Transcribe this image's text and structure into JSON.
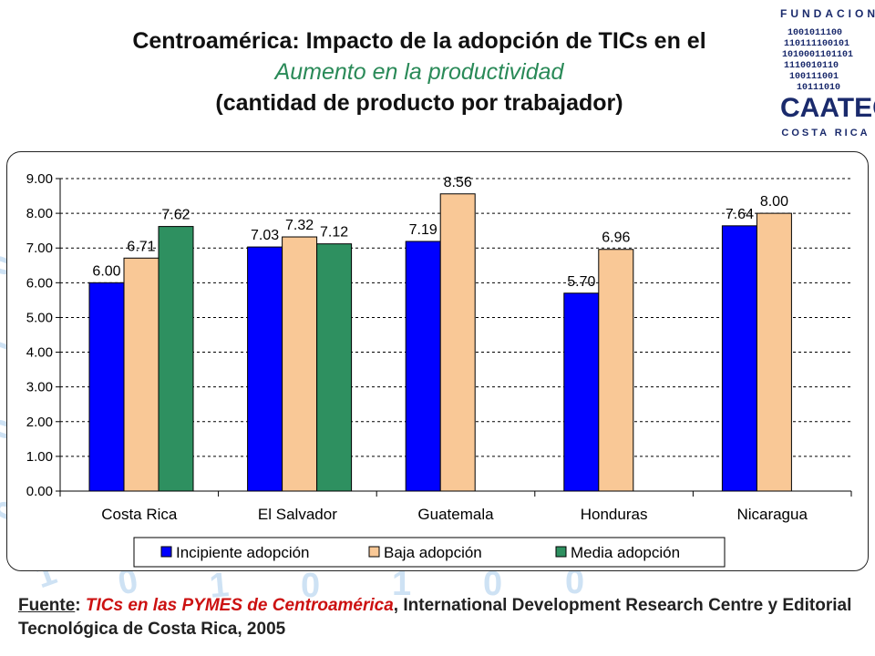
{
  "title": {
    "line1": "Centroamérica: Impacto de la adopción de TICs en el",
    "line2": "Aumento en la productividad",
    "line3": "(cantidad de producto por trabajador)"
  },
  "logo": {
    "top_text": "FUNDACION",
    "name": "CAATEC",
    "bottom_text": "COSTA RICA"
  },
  "footer": {
    "label": "Fuente",
    "colon": ": ",
    "source_title": "TICs en las PYMES de Centroamérica",
    "source_rest": ", International Development Research Centre y Editorial Tecnológica de Costa Rica, 2005"
  },
  "colors": {
    "incipiente": "#0000ff",
    "baja": "#f9c896",
    "media": "#2e9060"
  },
  "chart_data": {
    "type": "bar",
    "title": "",
    "xlabel": "",
    "ylabel": "",
    "ylim": [
      0,
      9
    ],
    "yticks": [
      "0.00",
      "1.00",
      "2.00",
      "3.00",
      "4.00",
      "5.00",
      "6.00",
      "7.00",
      "8.00",
      "9.00"
    ],
    "categories": [
      "Costa Rica",
      "El Salvador",
      "Guatemala",
      "Honduras",
      "Nicaragua"
    ],
    "series": [
      {
        "name": "Incipiente adopción",
        "color_key": "incipiente",
        "values": [
          6.0,
          7.03,
          7.19,
          5.7,
          7.64
        ],
        "labels": [
          "6.00",
          "7.03",
          "7.19",
          "5.70",
          "7.64"
        ]
      },
      {
        "name": "Baja adopción",
        "color_key": "baja",
        "values": [
          6.71,
          7.32,
          8.56,
          6.96,
          8.0
        ],
        "labels": [
          "6.71",
          "7.32",
          "8.56",
          "6.96",
          "8.00"
        ]
      },
      {
        "name": "Media adopción",
        "color_key": "media",
        "values": [
          7.62,
          7.12,
          null,
          null,
          null
        ],
        "labels": [
          "7.62",
          "7.12",
          null,
          null,
          null
        ]
      }
    ],
    "grid": true,
    "legend_position": "bottom"
  }
}
